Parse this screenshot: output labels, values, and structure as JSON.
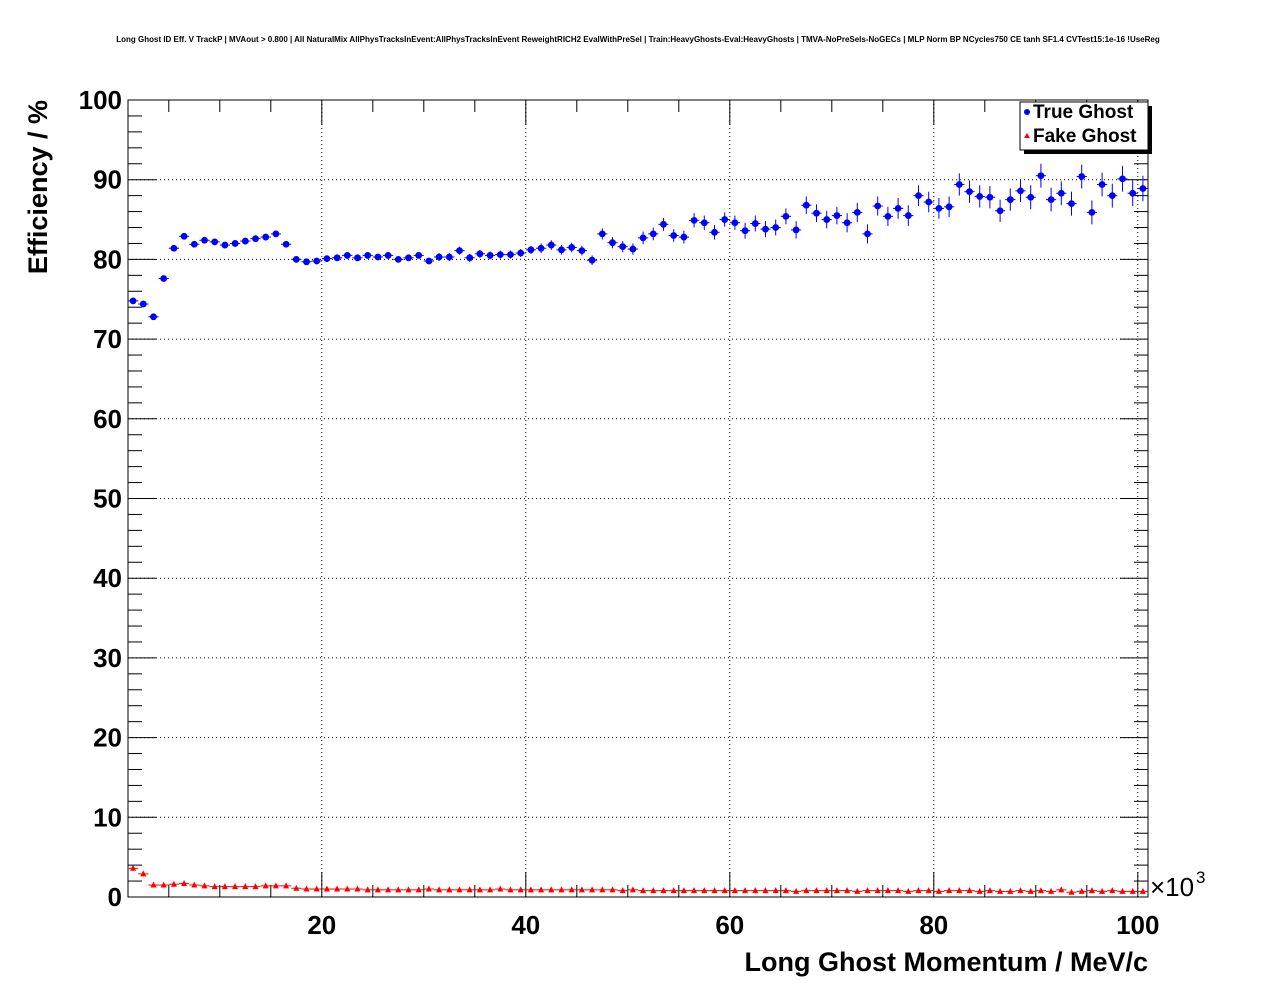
{
  "chart_data": {
    "type": "scatter",
    "title": "Long Ghost ID Eff. V TrackP | MVAout > 0.800 | All NaturalMix AllPhysTracksInEvent:AllPhysTracksInEvent ReweightRICH2 EvalWithPreSel | Train:HeavyGhosts-Eval:HeavyGhosts | TMVA-NoPreSels-NoGECs | MLP Norm BP NCycles750 CE tanh SF1.4 CVTest15:1e-16 !UseReg",
    "xlabel": "Long Ghost Momentum / MeV/c",
    "ylabel": "Efficiency / %",
    "x_multiplier_label": "×10",
    "x_multiplier_exponent": "3",
    "xlim": [
      1000,
      101000
    ],
    "ylim": [
      0,
      100
    ],
    "x_ticks": [
      20,
      40,
      60,
      80,
      100
    ],
    "y_ticks": [
      0,
      10,
      20,
      30,
      40,
      50,
      60,
      70,
      80,
      90,
      100
    ],
    "grid": true,
    "legend_position": "top-right",
    "x_unit": "thousands of MeV/c",
    "bins": [
      1.5,
      2.5,
      3.5,
      4.5,
      5.5,
      6.5,
      7.5,
      8.5,
      9.5,
      10.5,
      11.5,
      12.5,
      13.5,
      14.5,
      15.5,
      16.5,
      17.5,
      18.5,
      19.5,
      20.5,
      21.5,
      22.5,
      23.5,
      24.5,
      25.5,
      26.5,
      27.5,
      28.5,
      29.5,
      30.5,
      31.5,
      32.5,
      33.5,
      34.5,
      35.5,
      36.5,
      37.5,
      38.5,
      39.5,
      40.5,
      41.5,
      42.5,
      43.5,
      44.5,
      45.5,
      46.5,
      47.5,
      48.5,
      49.5,
      50.5,
      51.5,
      52.5,
      53.5,
      54.5,
      55.5,
      56.5,
      57.5,
      58.5,
      59.5,
      60.5,
      61.5,
      62.5,
      63.5,
      64.5,
      65.5,
      66.5,
      67.5,
      68.5,
      69.5,
      70.5,
      71.5,
      72.5,
      73.5,
      74.5,
      75.5,
      76.5,
      77.5,
      78.5,
      79.5,
      80.5,
      81.5,
      82.5,
      83.5,
      84.5,
      85.5,
      86.5,
      87.5,
      88.5,
      89.5,
      90.5,
      91.5,
      92.5,
      93.5,
      94.5,
      95.5,
      96.5,
      97.5,
      98.5,
      99.5,
      100.5
    ],
    "series": [
      {
        "name": "True Ghost",
        "color": "#0000ff",
        "marker": "circle",
        "values": [
          74.8,
          74.4,
          72.8,
          77.6,
          81.4,
          82.9,
          81.9,
          82.4,
          82.2,
          81.8,
          82.0,
          82.3,
          82.6,
          82.8,
          83.2,
          81.9,
          80.0,
          79.7,
          79.8,
          80.1,
          80.2,
          80.5,
          80.2,
          80.5,
          80.3,
          80.5,
          80.0,
          80.2,
          80.5,
          79.8,
          80.3,
          80.3,
          81.1,
          80.2,
          80.7,
          80.5,
          80.6,
          80.6,
          80.8,
          81.2,
          81.4,
          81.8,
          81.2,
          81.5,
          81.1,
          79.9,
          83.2,
          82.1,
          81.6,
          81.3,
          82.7,
          83.2,
          84.4,
          83.0,
          82.8,
          84.9,
          84.6,
          83.4,
          85.0,
          84.6,
          83.6,
          84.5,
          83.8,
          84.0,
          85.4,
          83.7,
          86.8,
          85.8,
          85.0,
          85.5,
          84.6,
          85.9,
          83.2,
          86.7,
          85.4,
          86.4,
          85.5,
          88.0,
          87.2,
          86.4,
          86.6,
          89.4,
          88.5,
          87.9,
          87.8,
          86.1,
          87.5,
          88.6,
          87.8,
          90.5,
          87.5,
          88.3,
          87.0,
          90.4,
          85.9,
          89.4,
          88.0,
          90.1,
          88.3,
          88.9
        ],
        "errors": [
          0.4,
          0.4,
          0.4,
          0.4,
          0.4,
          0.4,
          0.4,
          0.4,
          0.4,
          0.4,
          0.4,
          0.4,
          0.4,
          0.4,
          0.4,
          0.4,
          0.4,
          0.4,
          0.4,
          0.4,
          0.4,
          0.4,
          0.4,
          0.4,
          0.4,
          0.4,
          0.4,
          0.4,
          0.4,
          0.4,
          0.5,
          0.5,
          0.5,
          0.5,
          0.5,
          0.5,
          0.5,
          0.5,
          0.5,
          0.5,
          0.6,
          0.6,
          0.6,
          0.6,
          0.6,
          0.6,
          0.7,
          0.7,
          0.7,
          0.7,
          0.8,
          0.8,
          0.8,
          0.8,
          0.8,
          0.9,
          0.9,
          0.9,
          0.9,
          0.9,
          1.0,
          1.0,
          1.0,
          1.0,
          1.0,
          1.1,
          1.1,
          1.1,
          1.1,
          1.1,
          1.2,
          1.2,
          1.2,
          1.2,
          1.2,
          1.3,
          1.3,
          1.3,
          1.3,
          1.3,
          1.3,
          1.4,
          1.4,
          1.4,
          1.4,
          1.4,
          1.4,
          1.4,
          1.5,
          1.5,
          1.5,
          1.5,
          1.5,
          1.5,
          1.5,
          1.5,
          1.5,
          1.6,
          1.6,
          1.6
        ]
      },
      {
        "name": "Fake Ghost",
        "color": "#ff0000",
        "marker": "triangle",
        "values": [
          3.6,
          2.9,
          1.5,
          1.5,
          1.6,
          1.7,
          1.5,
          1.4,
          1.3,
          1.3,
          1.3,
          1.3,
          1.3,
          1.4,
          1.4,
          1.4,
          1.1,
          1.0,
          1.0,
          1.0,
          1.0,
          1.0,
          1.0,
          0.9,
          0.9,
          0.9,
          0.9,
          0.9,
          0.9,
          1.0,
          0.9,
          0.9,
          0.9,
          0.9,
          0.9,
          0.9,
          1.0,
          0.9,
          0.9,
          0.9,
          0.9,
          0.9,
          0.9,
          0.9,
          0.9,
          0.9,
          0.9,
          0.9,
          0.8,
          0.9,
          0.8,
          0.8,
          0.8,
          0.8,
          0.8,
          0.8,
          0.8,
          0.8,
          0.8,
          0.8,
          0.8,
          0.8,
          0.8,
          0.8,
          0.8,
          0.7,
          0.8,
          0.8,
          0.8,
          0.8,
          0.8,
          0.7,
          0.8,
          0.8,
          0.8,
          0.8,
          0.7,
          0.8,
          0.8,
          0.7,
          0.8,
          0.8,
          0.8,
          0.7,
          0.8,
          0.7,
          0.7,
          0.8,
          0.7,
          0.8,
          0.7,
          0.9,
          0.6,
          0.7,
          0.8,
          0.7,
          0.8,
          0.7,
          0.7,
          0.7
        ],
        "errors": [
          0.3,
          0.3,
          0.2,
          0.2,
          0.2,
          0.2,
          0.2,
          0.2,
          0.2,
          0.2,
          0.2,
          0.2,
          0.2,
          0.2,
          0.2,
          0.2,
          0.2,
          0.2,
          0.2,
          0.2,
          0.2,
          0.2,
          0.2,
          0.2,
          0.2,
          0.2,
          0.2,
          0.2,
          0.2,
          0.2,
          0.2,
          0.2,
          0.2,
          0.2,
          0.2,
          0.2,
          0.2,
          0.2,
          0.2,
          0.2,
          0.2,
          0.2,
          0.2,
          0.2,
          0.2,
          0.2,
          0.2,
          0.2,
          0.2,
          0.2,
          0.2,
          0.2,
          0.2,
          0.2,
          0.2,
          0.2,
          0.2,
          0.2,
          0.2,
          0.2,
          0.2,
          0.2,
          0.2,
          0.2,
          0.2,
          0.2,
          0.2,
          0.2,
          0.2,
          0.2,
          0.2,
          0.2,
          0.2,
          0.2,
          0.2,
          0.2,
          0.2,
          0.2,
          0.2,
          0.2,
          0.2,
          0.2,
          0.2,
          0.2,
          0.2,
          0.2,
          0.2,
          0.2,
          0.2,
          0.2,
          0.2,
          0.2,
          0.2,
          0.2,
          0.2,
          0.2,
          0.2,
          0.2,
          0.2,
          0.2
        ]
      }
    ]
  }
}
